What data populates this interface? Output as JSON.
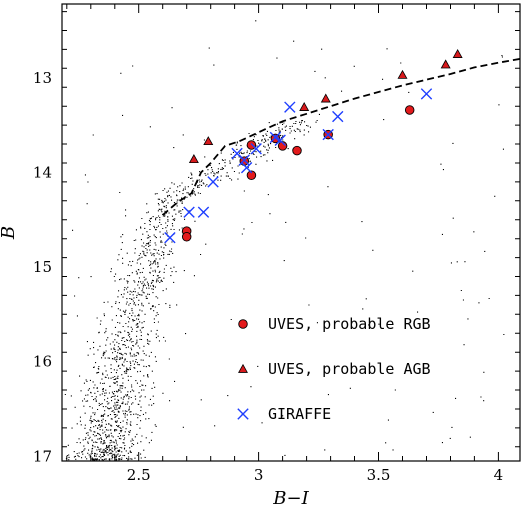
{
  "chart_data": {
    "type": "scatter",
    "xlabel": "B−I",
    "ylabel": "B",
    "xlim": [
      2.18,
      4.09
    ],
    "ylim": [
      17.05,
      12.22
    ],
    "y_inverted": true,
    "xticks": [
      2.5,
      3,
      3.5,
      4
    ],
    "xtick_labels": [
      "2.5",
      "3",
      "3.5",
      "4"
    ],
    "yticks": [
      13,
      14,
      15,
      16,
      17
    ],
    "ytick_labels": [
      "13",
      "14",
      "15",
      "16",
      "17"
    ],
    "grid": false,
    "legend_position": "bottom-right",
    "colors": {
      "rgb": "#e31a1c",
      "agb": "#d7191c",
      "giraffe": "#1f3fff",
      "field": "#000000"
    },
    "series": [
      {
        "name": "UVES, probable RGB",
        "marker": "circle",
        "points": [
          [
            2.7,
            14.62
          ],
          [
            2.7,
            14.68
          ],
          [
            2.94,
            13.88
          ],
          [
            2.97,
            13.71
          ],
          [
            2.97,
            14.03
          ],
          [
            3.07,
            13.64
          ],
          [
            3.1,
            13.72
          ],
          [
            3.16,
            13.77
          ],
          [
            3.29,
            13.6
          ],
          [
            3.63,
            13.34
          ]
        ]
      },
      {
        "name": "UVES, probable AGB",
        "marker": "triangle",
        "points": [
          [
            2.73,
            13.86
          ],
          [
            2.79,
            13.67
          ],
          [
            3.19,
            13.31
          ],
          [
            3.28,
            13.22
          ],
          [
            3.6,
            12.97
          ],
          [
            3.78,
            12.86
          ],
          [
            3.83,
            12.75
          ]
        ]
      },
      {
        "name": "GIRAFFE",
        "marker": "cross",
        "points": [
          [
            2.63,
            14.69
          ],
          [
            2.71,
            14.42
          ],
          [
            2.77,
            14.42
          ],
          [
            2.81,
            14.1
          ],
          [
            2.91,
            13.8
          ],
          [
            2.94,
            13.87
          ],
          [
            2.95,
            13.95
          ],
          [
            2.99,
            13.75
          ],
          [
            3.07,
            13.63
          ],
          [
            3.09,
            13.66
          ],
          [
            3.13,
            13.31
          ],
          [
            3.29,
            13.6
          ],
          [
            3.33,
            13.41
          ],
          [
            3.7,
            13.17
          ]
        ]
      }
    ],
    "isochrone": {
      "style": "dashed",
      "points": [
        [
          2.6,
          14.45
        ],
        [
          2.66,
          14.32
        ],
        [
          2.72,
          14.22
        ],
        [
          2.76,
          14.0
        ],
        [
          2.8,
          13.9
        ],
        [
          2.86,
          13.72
        ],
        [
          2.92,
          13.67
        ],
        [
          2.98,
          13.6
        ],
        [
          3.03,
          13.54
        ],
        [
          3.1,
          13.46
        ],
        [
          3.2,
          13.38
        ],
        [
          3.3,
          13.3
        ],
        [
          3.4,
          13.22
        ],
        [
          3.5,
          13.15
        ],
        [
          3.6,
          13.08
        ],
        [
          3.7,
          13.02
        ],
        [
          3.8,
          12.96
        ],
        [
          3.9,
          12.89
        ],
        [
          4.0,
          12.84
        ],
        [
          4.09,
          12.8
        ]
      ]
    },
    "background_stars": {
      "count": 1700,
      "description_from_image": "cloud of small black points along the red giant branch"
    }
  }
}
